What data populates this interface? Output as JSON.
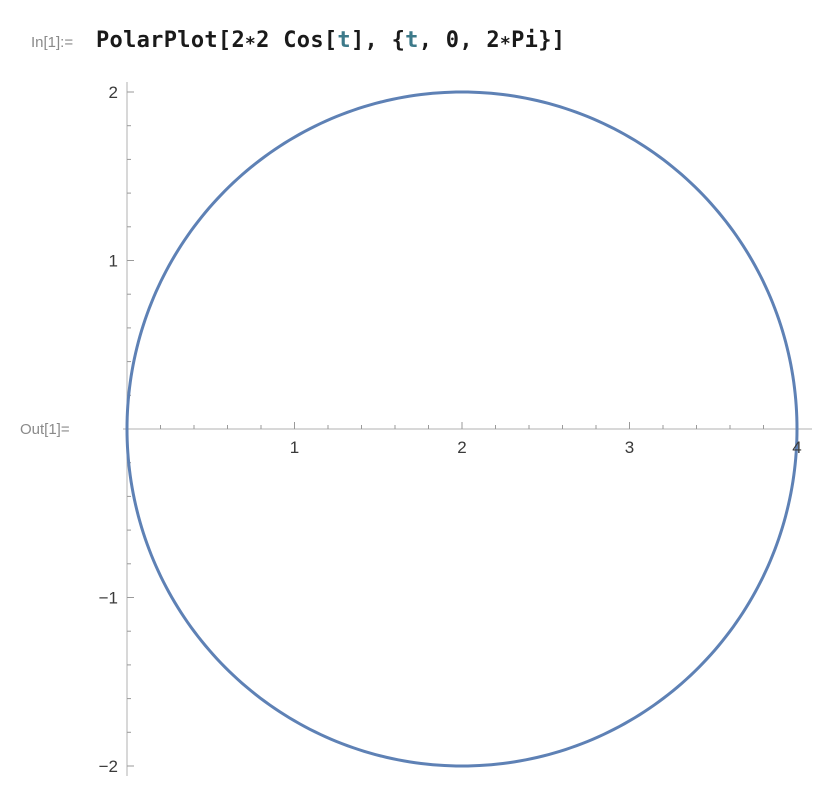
{
  "cell": {
    "input_label": "In[1]:=",
    "output_label": "Out[1]=",
    "code_tokens": [
      {
        "text": "PolarPlot[2",
        "kind": "plain"
      },
      {
        "text": "∗",
        "kind": "star"
      },
      {
        "text": "2 Cos[",
        "kind": "plain"
      },
      {
        "text": "t",
        "kind": "var"
      },
      {
        "text": "], {",
        "kind": "plain"
      },
      {
        "text": "t",
        "kind": "var"
      },
      {
        "text": ", 0, 2",
        "kind": "plain"
      },
      {
        "text": "∗",
        "kind": "star"
      },
      {
        "text": "Pi}]",
        "kind": "plain"
      }
    ]
  },
  "chart_data": {
    "type": "line",
    "title": "",
    "xlabel": "",
    "ylabel": "",
    "xlim": [
      0,
      4
    ],
    "ylim": [
      -2,
      2
    ],
    "x_major_ticks": [
      {
        "value": 1,
        "label": "1"
      },
      {
        "value": 2,
        "label": "2"
      },
      {
        "value": 3,
        "label": "3"
      },
      {
        "value": 4,
        "label": "4"
      }
    ],
    "y_major_ticks": [
      {
        "value": 2,
        "label": "2"
      },
      {
        "value": 1,
        "label": "1"
      },
      {
        "value": -1,
        "label": "−1"
      },
      {
        "value": -2,
        "label": "−2"
      }
    ],
    "minor_tick_step": 0.2,
    "grid": false,
    "series": [
      {
        "expression": "r = 2*2 Cos[t]",
        "parameter_range": [
          0,
          6.283185307
        ],
        "shape": "circle",
        "center": [
          2,
          0
        ],
        "radius": 2,
        "color": "#5e81b5"
      }
    ]
  }
}
